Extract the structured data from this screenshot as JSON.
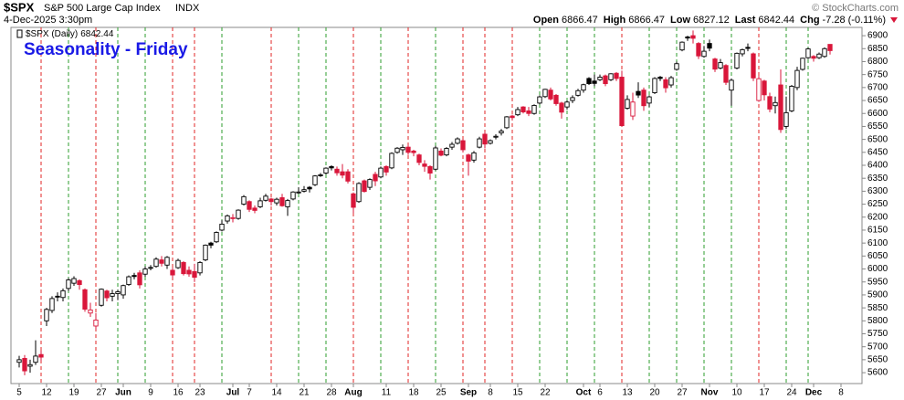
{
  "header": {
    "symbol": "$SPX",
    "name": "S&P 500 Large Cap Index",
    "exchange": "INDX",
    "date": "4-Dec-2025 3:30pm",
    "quote_labels": [
      "Open",
      "High",
      "Low",
      "Last",
      "Chg"
    ],
    "change": -7.28,
    "change_pct": "(-0.11%)",
    "copyright": "© StockCharts.com"
  },
  "chart_data": {
    "type": "candlestick",
    "legend_label": "$SPX (Daily)",
    "annotation": "Seasonality - Friday",
    "categories": [
      "5",
      null,
      null,
      null,
      null,
      "12",
      null,
      null,
      null,
      null,
      "19",
      null,
      null,
      null,
      null,
      "27",
      null,
      null,
      null,
      "Jun",
      null,
      null,
      null,
      null,
      "9",
      null,
      null,
      null,
      null,
      "16",
      null,
      null,
      null,
      "23",
      null,
      null,
      null,
      null,
      null,
      "Jul",
      null,
      null,
      "7",
      null,
      null,
      null,
      null,
      "14",
      null,
      null,
      null,
      null,
      "21",
      null,
      null,
      null,
      null,
      "28",
      null,
      null,
      null,
      "Aug",
      null,
      null,
      null,
      null,
      null,
      "11",
      null,
      null,
      null,
      null,
      "18",
      null,
      null,
      null,
      null,
      "25",
      null,
      null,
      null,
      null,
      "Sep",
      null,
      null,
      null,
      "8",
      null,
      null,
      null,
      null,
      "15",
      null,
      null,
      null,
      null,
      "22",
      null,
      null,
      null,
      null,
      null,
      null,
      "Oct",
      null,
      null,
      "6",
      null,
      null,
      null,
      null,
      "13",
      null,
      null,
      null,
      null,
      "20",
      null,
      null,
      null,
      null,
      "27",
      null,
      null,
      null,
      null,
      "Nov",
      null,
      null,
      null,
      null,
      "10",
      null,
      null,
      null,
      null,
      "17",
      null,
      null,
      null,
      null,
      "24",
      null,
      null,
      null,
      "Dec",
      null,
      null,
      null,
      null,
      "8"
    ],
    "open": [
      5640,
      5655,
      5625,
      5640,
      5670,
      5800,
      5840,
      5895,
      5890,
      5925,
      5945,
      5955,
      5920,
      5830,
      5780,
      5860,
      5915,
      5895,
      5905,
      5900,
      5940,
      5975,
      5985,
      5980,
      6005,
      6010,
      6035,
      6015,
      5995,
      6005,
      6025,
      5995,
      5990,
      5985,
      6035,
      6100,
      6105,
      6150,
      6185,
      6195,
      6195,
      6250,
      6260,
      6235,
      6240,
      6265,
      6270,
      6255,
      6275,
      6240,
      6270,
      6295,
      6300,
      6315,
      6325,
      6360,
      6370,
      6395,
      6385,
      6375,
      6375,
      6290,
      6260,
      6340,
      6315,
      6365,
      6355,
      6395,
      6390,
      6450,
      6460,
      6470,
      6455,
      6440,
      6405,
      6395,
      6385,
      6455,
      6440,
      6470,
      6485,
      6495,
      6440,
      6420,
      6470,
      6520,
      6485,
      6510,
      6525,
      6545,
      6590,
      6595,
      6625,
      6610,
      6600,
      6640,
      6665,
      6690,
      6670,
      6640,
      6625,
      6650,
      6670,
      6690,
      6735,
      6725,
      6730,
      6745,
      6730,
      6755,
      6740,
      6620,
      6590,
      6685,
      6690,
      6640,
      6680,
      6740,
      6730,
      6710,
      6770,
      6845,
      6895,
      6900,
      6870,
      6820,
      6870,
      6810,
      6775,
      6785,
      6690,
      6775,
      6830,
      6855,
      6830,
      6650,
      6725,
      6665,
      6630,
      6710,
      6550,
      6610,
      6700,
      6770,
      6815,
      6820,
      6815,
      6820,
      6866.47,
      null,
      null
    ],
    "high": [
      5665,
      5668,
      5650,
      5725,
      5685,
      5850,
      5895,
      5910,
      5925,
      5965,
      5972,
      5960,
      5925,
      5870,
      5830,
      5925,
      5920,
      5920,
      5920,
      5940,
      5975,
      5985,
      5995,
      6010,
      6015,
      6045,
      6050,
      6050,
      6005,
      6040,
      6030,
      6010,
      6020,
      6030,
      6095,
      6105,
      6145,
      6188,
      6210,
      6212,
      6230,
      6285,
      6265,
      6245,
      6275,
      6290,
      6275,
      6275,
      6290,
      6270,
      6300,
      6315,
      6320,
      6320,
      6362,
      6370,
      6392,
      6400,
      6395,
      6405,
      6385,
      6295,
      6335,
      6345,
      6350,
      6375,
      6395,
      6400,
      6450,
      6470,
      6480,
      6480,
      6460,
      6445,
      6420,
      6400,
      6475,
      6465,
      6470,
      6490,
      6508,
      6500,
      6445,
      6455,
      6510,
      6530,
      6500,
      6520,
      6540,
      6590,
      6595,
      6625,
      6628,
      6625,
      6635,
      6670,
      6695,
      6700,
      6675,
      6645,
      6650,
      6670,
      6695,
      6715,
      6740,
      6750,
      6750,
      6750,
      6755,
      6760,
      6765,
      6670,
      6680,
      6720,
      6700,
      6670,
      6740,
      6745,
      6740,
      6745,
      6800,
      6878,
      6900,
      6920,
      6875,
      6860,
      6885,
      6815,
      6810,
      6790,
      6735,
      6835,
      6850,
      6870,
      6835,
      6745,
      6730,
      6680,
      6665,
      6770,
      6665,
      6710,
      6780,
      6815,
      6853,
      6825,
      6835,
      6855,
      6866.47,
      null,
      null
    ],
    "low": [
      5620,
      5590,
      5600,
      5630,
      5645,
      5780,
      5830,
      5875,
      5875,
      5915,
      5935,
      5920,
      5835,
      5815,
      5765,
      5855,
      5875,
      5875,
      5880,
      5885,
      5935,
      5960,
      5925,
      5970,
      5995,
      6005,
      6010,
      6000,
      5965,
      6000,
      5975,
      5970,
      5950,
      5975,
      6030,
      6080,
      6100,
      6145,
      6175,
      6180,
      6190,
      6245,
      6220,
      6215,
      6235,
      6260,
      6245,
      6245,
      6240,
      6205,
      6265,
      6290,
      6295,
      6295,
      6320,
      6355,
      6365,
      6380,
      6360,
      6350,
      6330,
      6215,
      6255,
      6295,
      6305,
      6320,
      6350,
      6360,
      6385,
      6445,
      6440,
      6440,
      6435,
      6400,
      6375,
      6345,
      6380,
      6435,
      6435,
      6460,
      6480,
      6450,
      6360,
      6410,
      6465,
      6465,
      6480,
      6500,
      6515,
      6540,
      6575,
      6590,
      6600,
      6590,
      6595,
      6635,
      6660,
      6650,
      6630,
      6580,
      6615,
      6640,
      6665,
      6680,
      6710,
      6705,
      6725,
      6705,
      6725,
      6725,
      6550,
      6615,
      6575,
      6660,
      6610,
      6625,
      6675,
      6725,
      6680,
      6700,
      6765,
      6840,
      6880,
      6870,
      6810,
      6815,
      6840,
      6760,
      6770,
      6710,
      6630,
      6770,
      6820,
      6840,
      6725,
      6645,
      6650,
      6605,
      6600,
      6525,
      6540,
      6605,
      6690,
      6765,
      6810,
      6800,
      6810,
      6815,
      6827.12,
      null,
      null
    ],
    "close": [
      5650,
      5607,
      5631,
      5664,
      5660,
      5844,
      5886,
      5892,
      5916,
      5958,
      5963,
      5940,
      5845,
      5842,
      5803,
      5922,
      5889,
      5905,
      5912,
      5936,
      5970,
      5971,
      5939,
      6000,
      6006,
      6038,
      6022,
      6045,
      5977,
      6033,
      5982,
      5981,
      5968,
      6025,
      6092,
      6092,
      6141,
      6173,
      6205,
      6198,
      6227,
      6279,
      6230,
      6226,
      6263,
      6281,
      6260,
      6269,
      6244,
      6264,
      6297,
      6297,
      6306,
      6309,
      6359,
      6363,
      6389,
      6390,
      6371,
      6362,
      6339,
      6238,
      6330,
      6299,
      6345,
      6340,
      6389,
      6374,
      6446,
      6466,
      6469,
      6450,
      6449,
      6411,
      6396,
      6370,
      6467,
      6439,
      6465,
      6481,
      6502,
      6460,
      6416,
      6448,
      6502,
      6482,
      6495,
      6512,
      6532,
      6587,
      6584,
      6615,
      6606,
      6600,
      6631,
      6664,
      6693,
      6656,
      6638,
      6605,
      6644,
      6661,
      6688,
      6711,
      6715,
      6716,
      6740,
      6715,
      6753,
      6735,
      6553,
      6654,
      6644,
      6671,
      6630,
      6664,
      6735,
      6735,
      6699,
      6738,
      6792,
      6875,
      6891,
      6890,
      6822,
      6840,
      6852,
      6771,
      6796,
      6720,
      6728,
      6832,
      6846,
      6851,
      6737,
      6734,
      6672,
      6617,
      6642,
      6538,
      6603,
      6705,
      6766,
      6813,
      6849,
      6813,
      6829,
      6850,
      6842.44,
      null,
      null
    ],
    "fridays": [
      4,
      9,
      14,
      18,
      23,
      28,
      32,
      37,
      46,
      51,
      56,
      61,
      66,
      71,
      76,
      81,
      85,
      90,
      95,
      100,
      105,
      110,
      115,
      120,
      125,
      130,
      135,
      140,
      144
    ],
    "ylim": [
      5558,
      6932
    ],
    "yticks": [
      5600,
      5650,
      5700,
      5750,
      5800,
      5850,
      5900,
      5950,
      6000,
      6050,
      6100,
      6150,
      6200,
      6250,
      6300,
      6350,
      6400,
      6450,
      6500,
      6550,
      6600,
      6650,
      6700,
      6750,
      6800,
      6850,
      6900
    ],
    "up_color": "#000000",
    "down_color": "#d9163a",
    "friday_up_color": "#2e9e2e",
    "friday_down_color": "#e02424",
    "annotation_color": "#1a1ae6"
  }
}
